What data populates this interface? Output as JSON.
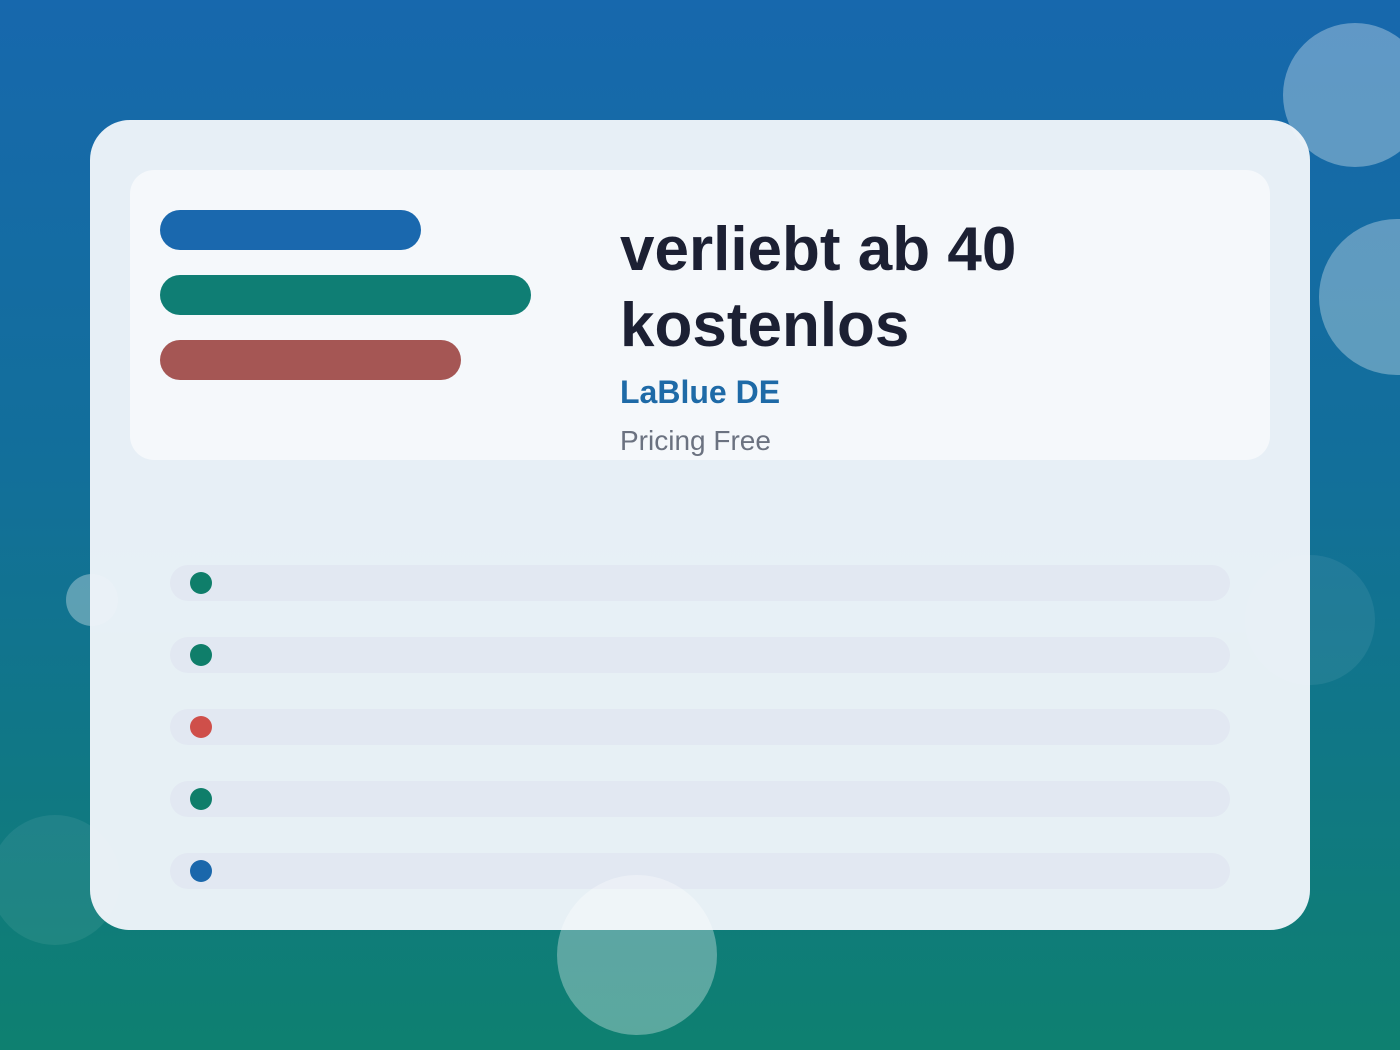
{
  "title": "verliebt ab 40 kostenlos",
  "brand": "LaBlue DE",
  "pricing": "Pricing Free"
}
